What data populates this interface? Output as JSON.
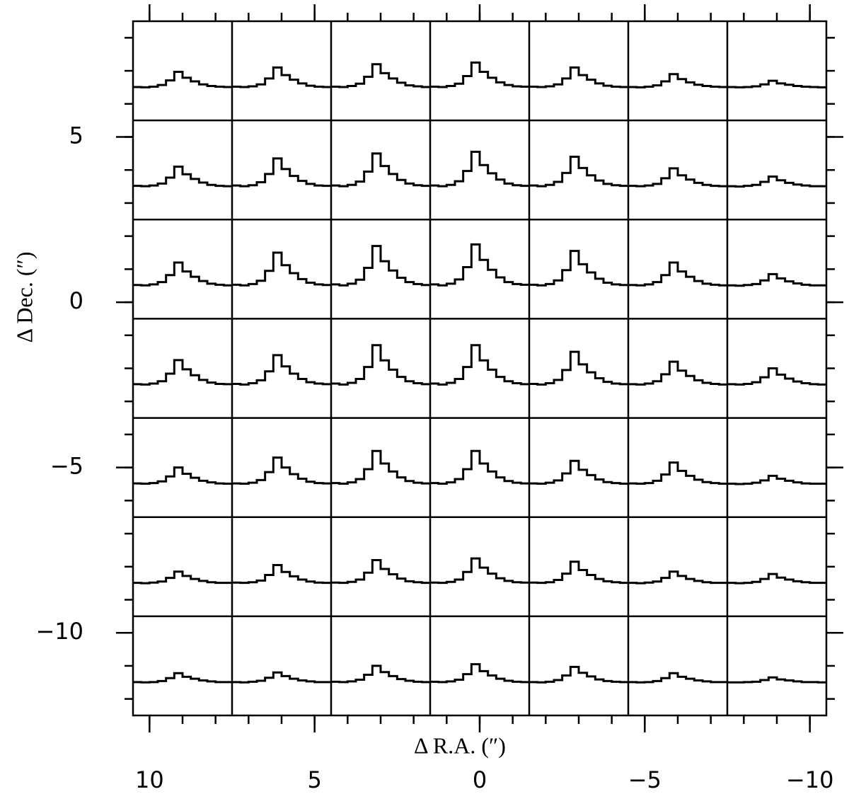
{
  "chart_data": {
    "type": "spectral_map",
    "xlabel": "Δ R.A. (″)",
    "ylabel": "Δ Dec. (″)",
    "xlim": [
      10.5,
      -10.5
    ],
    "ylim": [
      -12.5,
      8.5
    ],
    "xticks": [
      {
        "value": 10,
        "label": "10"
      },
      {
        "value": 5,
        "label": "5"
      },
      {
        "value": 0,
        "label": "0"
      },
      {
        "value": -5,
        "label": "−5"
      },
      {
        "value": -10,
        "label": "−10"
      }
    ],
    "yticks": [
      {
        "value": 5,
        "label": "5"
      },
      {
        "value": 0,
        "label": "0"
      },
      {
        "value": -5,
        "label": "−5"
      },
      {
        "value": -10,
        "label": "−10"
      }
    ],
    "xminorticks": [
      10,
      9,
      8,
      7,
      6,
      5,
      4,
      3,
      2,
      1,
      0,
      -1,
      -2,
      -3,
      -4,
      -5,
      -6,
      -7,
      -8,
      -9,
      -10
    ],
    "yminorticks": [
      8,
      7,
      6,
      5,
      4,
      3,
      2,
      1,
      0,
      -1,
      -2,
      -3,
      -4,
      -5,
      -6,
      -7,
      -8,
      -9,
      -10,
      -11,
      -12
    ],
    "ra_offsets": [
      9,
      6,
      3,
      0,
      -3,
      -6,
      -9
    ],
    "dec_offsets": [
      7,
      4,
      1,
      -2,
      -5,
      -8,
      -11
    ],
    "color": "#000000",
    "spectra": [
      [
        [
          0.01,
          0,
          0.02,
          0.07,
          0.21,
          0.47,
          0.29,
          0.18,
          0.09,
          0.04,
          0.02,
          0.01
        ],
        [
          0.02,
          0.01,
          0.03,
          0.09,
          0.27,
          0.6,
          0.37,
          0.23,
          0.12,
          0.05,
          0.02,
          0.01
        ],
        [
          0.02,
          0.01,
          0.04,
          0.11,
          0.32,
          0.7,
          0.43,
          0.27,
          0.14,
          0.06,
          0.03,
          0.01
        ],
        [
          0.02,
          0.01,
          0.04,
          0.11,
          0.34,
          0.75,
          0.47,
          0.29,
          0.15,
          0.07,
          0.03,
          0.02
        ],
        [
          0.02,
          0.01,
          0.03,
          0.09,
          0.27,
          0.6,
          0.37,
          0.23,
          0.12,
          0.05,
          0.02,
          0.01
        ],
        [
          0.01,
          0,
          0.02,
          0.06,
          0.18,
          0.4,
          0.25,
          0.15,
          0.08,
          0.04,
          0.02,
          0.01
        ],
        [
          0.01,
          0,
          0.01,
          0.03,
          0.09,
          0.2,
          0.12,
          0.08,
          0.04,
          0.02,
          0.01,
          0
        ]
      ],
      [
        [
          0.02,
          0.01,
          0.03,
          0.09,
          0.27,
          0.6,
          0.37,
          0.23,
          0.12,
          0.05,
          0.02,
          0.01
        ],
        [
          0.03,
          0.01,
          0.04,
          0.13,
          0.38,
          0.85,
          0.53,
          0.32,
          0.17,
          0.08,
          0.03,
          0.02
        ],
        [
          0.03,
          0.01,
          0.05,
          0.15,
          0.45,
          1,
          0.62,
          0.38,
          0.2,
          0.09,
          0.04,
          0.02
        ],
        [
          0.03,
          0.01,
          0.05,
          0.16,
          0.47,
          1.05,
          0.65,
          0.4,
          0.21,
          0.09,
          0.04,
          0.02
        ],
        [
          0.03,
          0.01,
          0.05,
          0.14,
          0.41,
          0.9,
          0.56,
          0.34,
          0.18,
          0.08,
          0.04,
          0.02
        ],
        [
          0.02,
          0.01,
          0.03,
          0.08,
          0.25,
          0.55,
          0.34,
          0.21,
          0.11,
          0.05,
          0.02,
          0.01
        ],
        [
          0.01,
          0,
          0.02,
          0.05,
          0.14,
          0.3,
          0.19,
          0.11,
          0.06,
          0.03,
          0.01,
          0.01
        ]
      ],
      [
        [
          0.02,
          0.01,
          0.04,
          0.11,
          0.32,
          0.7,
          0.43,
          0.27,
          0.14,
          0.06,
          0.03,
          0.01
        ],
        [
          0.03,
          0.01,
          0.05,
          0.15,
          0.45,
          1,
          0.62,
          0.38,
          0.2,
          0.09,
          0.04,
          0.02
        ],
        [
          0.04,
          0.01,
          0.06,
          0.18,
          0.54,
          1.2,
          0.74,
          0.46,
          0.24,
          0.11,
          0.05,
          0.02
        ],
        [
          0.04,
          0.01,
          0.06,
          0.19,
          0.56,
          1.25,
          0.78,
          0.48,
          0.25,
          0.11,
          0.05,
          0.03
        ],
        [
          0.03,
          0.01,
          0.05,
          0.16,
          0.47,
          1.05,
          0.65,
          0.4,
          0.21,
          0.09,
          0.04,
          0.02
        ],
        [
          0.02,
          0.01,
          0.04,
          0.11,
          0.32,
          0.7,
          0.43,
          0.27,
          0.14,
          0.06,
          0.03,
          0.01
        ],
        [
          0.01,
          0,
          0.02,
          0.05,
          0.16,
          0.35,
          0.22,
          0.13,
          0.07,
          0.03,
          0.01,
          0.01
        ]
      ],
      [
        [
          0.02,
          0.01,
          0.04,
          0.11,
          0.34,
          0.75,
          0.47,
          0.29,
          0.15,
          0.07,
          0.03,
          0.02
        ],
        [
          0.03,
          0.01,
          0.05,
          0.14,
          0.41,
          0.9,
          0.56,
          0.34,
          0.18,
          0.08,
          0.04,
          0.02
        ],
        [
          0.04,
          0.01,
          0.06,
          0.18,
          0.54,
          1.2,
          0.74,
          0.46,
          0.24,
          0.11,
          0.05,
          0.02
        ],
        [
          0.04,
          0.01,
          0.06,
          0.18,
          0.54,
          1.2,
          0.74,
          0.46,
          0.24,
          0.11,
          0.05,
          0.02
        ],
        [
          0.03,
          0.01,
          0.05,
          0.15,
          0.45,
          1,
          0.62,
          0.38,
          0.2,
          0.09,
          0.04,
          0.02
        ],
        [
          0.02,
          0.01,
          0.04,
          0.11,
          0.32,
          0.7,
          0.43,
          0.27,
          0.14,
          0.06,
          0.03,
          0.01
        ],
        [
          0.02,
          0.01,
          0.03,
          0.08,
          0.23,
          0.5,
          0.31,
          0.19,
          0.1,
          0.05,
          0.02,
          0.01
        ]
      ],
      [
        [
          0.02,
          0.01,
          0.03,
          0.08,
          0.23,
          0.5,
          0.31,
          0.19,
          0.1,
          0.05,
          0.02,
          0.01
        ],
        [
          0.02,
          0.01,
          0.04,
          0.12,
          0.36,
          0.8,
          0.5,
          0.3,
          0.16,
          0.07,
          0.03,
          0.02
        ],
        [
          0.03,
          0.01,
          0.05,
          0.15,
          0.45,
          1,
          0.62,
          0.38,
          0.2,
          0.09,
          0.04,
          0.02
        ],
        [
          0.03,
          0.01,
          0.05,
          0.15,
          0.45,
          1,
          0.62,
          0.38,
          0.2,
          0.09,
          0.04,
          0.02
        ],
        [
          0.02,
          0.01,
          0.04,
          0.11,
          0.32,
          0.7,
          0.43,
          0.27,
          0.14,
          0.06,
          0.03,
          0.01
        ],
        [
          0.02,
          0.01,
          0.03,
          0.1,
          0.29,
          0.65,
          0.4,
          0.25,
          0.13,
          0.06,
          0.03,
          0.01
        ],
        [
          0.01,
          0,
          0.01,
          0.04,
          0.11,
          0.25,
          0.16,
          0.1,
          0.05,
          0.02,
          0.01,
          0.01
        ]
      ],
      [
        [
          0.01,
          0,
          0.02,
          0.05,
          0.16,
          0.35,
          0.22,
          0.13,
          0.07,
          0.03,
          0.01,
          0.01
        ],
        [
          0.02,
          0.01,
          0.03,
          0.08,
          0.25,
          0.55,
          0.34,
          0.21,
          0.11,
          0.05,
          0.02,
          0.01
        ],
        [
          0.02,
          0.01,
          0.04,
          0.11,
          0.32,
          0.7,
          0.43,
          0.27,
          0.14,
          0.06,
          0.03,
          0.01
        ],
        [
          0.02,
          0.01,
          0.04,
          0.11,
          0.34,
          0.75,
          0.47,
          0.29,
          0.15,
          0.07,
          0.03,
          0.02
        ],
        [
          0.02,
          0.01,
          0.03,
          0.1,
          0.29,
          0.65,
          0.4,
          0.25,
          0.13,
          0.06,
          0.03,
          0.01
        ],
        [
          0.01,
          0,
          0.02,
          0.05,
          0.16,
          0.35,
          0.22,
          0.13,
          0.07,
          0.03,
          0.01,
          0.01
        ],
        [
          0.01,
          0,
          0.01,
          0.04,
          0.13,
          0.28,
          0.17,
          0.11,
          0.06,
          0.03,
          0.01,
          0.01
        ]
      ],
      [
        [
          0.01,
          0,
          0.01,
          0.04,
          0.13,
          0.28,
          0.17,
          0.11,
          0.06,
          0.03,
          0.01,
          0.01
        ],
        [
          0.01,
          0,
          0.02,
          0.05,
          0.14,
          0.3,
          0.19,
          0.11,
          0.06,
          0.03,
          0.01,
          0.01
        ],
        [
          0.02,
          0.01,
          0.03,
          0.08,
          0.23,
          0.5,
          0.31,
          0.19,
          0.1,
          0.05,
          0.02,
          0.01
        ],
        [
          0.02,
          0.01,
          0.03,
          0.08,
          0.25,
          0.55,
          0.34,
          0.21,
          0.11,
          0.05,
          0.02,
          0.01
        ],
        [
          0.01,
          0,
          0.02,
          0.07,
          0.21,
          0.47,
          0.29,
          0.18,
          0.09,
          0.04,
          0.02,
          0.01
        ],
        [
          0.01,
          0,
          0.01,
          0.04,
          0.13,
          0.28,
          0.17,
          0.11,
          0.06,
          0.03,
          0.01,
          0.01
        ],
        [
          0,
          0,
          0.01,
          0.02,
          0.07,
          0.15,
          0.09,
          0.06,
          0.03,
          0.01,
          0.01,
          0
        ]
      ]
    ]
  }
}
